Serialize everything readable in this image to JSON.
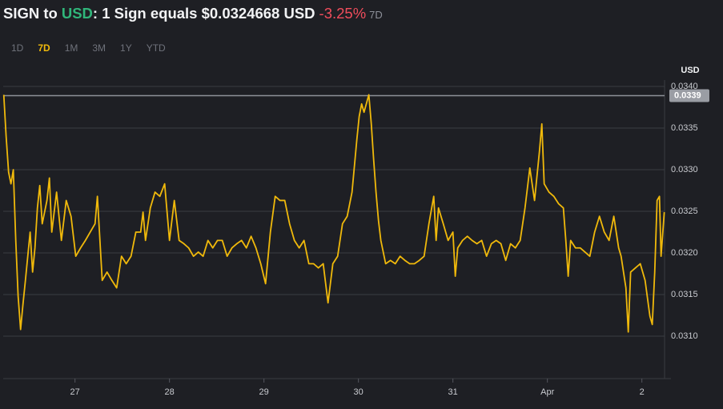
{
  "header": {
    "title_parts": [
      "SIGN to",
      "USD",
      ": 1 Sign equals $0.0324668 USD",
      "-3.25%",
      "7D"
    ]
  },
  "range_tabs": {
    "labels": [
      "1D",
      "7D",
      "1M",
      "3M",
      "1Y",
      "YTD"
    ],
    "active_index": 1
  },
  "chart_data": {
    "type": "line",
    "y_axis_label": "USD",
    "x": [
      26.246,
      26.271,
      26.297,
      26.322,
      26.347,
      26.373,
      26.398,
      26.424,
      26.449,
      26.475,
      26.5,
      26.525,
      26.551,
      26.576,
      26.602,
      26.627,
      26.653,
      26.703,
      26.729,
      26.754,
      26.805,
      26.856,
      26.907,
      26.958,
      27.008,
      27.059,
      27.11,
      27.161,
      27.212,
      27.237,
      27.288,
      27.339,
      27.39,
      27.441,
      27.492,
      27.542,
      27.593,
      27.644,
      27.695,
      27.72,
      27.746,
      27.797,
      27.847,
      27.898,
      27.949,
      28,
      28.051,
      28.102,
      28.153,
      28.203,
      28.254,
      28.305,
      28.356,
      28.407,
      28.458,
      28.508,
      28.559,
      28.61,
      28.661,
      28.712,
      28.763,
      28.814,
      28.864,
      28.915,
      28.966,
      29.017,
      29.068,
      29.119,
      29.169,
      29.22,
      29.271,
      29.322,
      29.373,
      29.424,
      29.475,
      29.525,
      29.576,
      29.627,
      29.678,
      29.729,
      29.78,
      29.831,
      29.881,
      29.932,
      29.983,
      30.008,
      30.034,
      30.059,
      30.11,
      30.136,
      30.161,
      30.186,
      30.212,
      30.237,
      30.288,
      30.339,
      30.39,
      30.441,
      30.492,
      30.542,
      30.593,
      30.644,
      30.695,
      30.746,
      30.797,
      30.822,
      30.847,
      30.898,
      30.949,
      31,
      31.025,
      31.051,
      31.102,
      31.153,
      31.203,
      31.254,
      31.305,
      31.356,
      31.407,
      31.458,
      31.508,
      31.559,
      31.61,
      31.661,
      31.712,
      31.763,
      31.814,
      31.864,
      31.915,
      31.941,
      31.966,
      32.017,
      32.068,
      32.119,
      32.169,
      32.195,
      32.22,
      32.246,
      32.297,
      32.347,
      32.398,
      32.449,
      32.5,
      32.551,
      32.602,
      32.653,
      32.703,
      32.754,
      32.78,
      32.831,
      32.856,
      32.881,
      32.932,
      32.983,
      33.034,
      33.085,
      33.11,
      33.136,
      33.161,
      33.186,
      33.203,
      33.237
    ],
    "series": [
      {
        "color": "#f0b90b",
        "values": [
          0.0339,
          0.0334,
          0.03297,
          0.03283,
          0.033,
          0.03215,
          0.03148,
          0.03108,
          0.03138,
          0.03167,
          0.03196,
          0.03225,
          0.03177,
          0.03206,
          0.03254,
          0.03281,
          0.03235,
          0.03263,
          0.0329,
          0.03225,
          0.03273,
          0.03215,
          0.03263,
          0.03244,
          0.03196,
          0.03206,
          0.03215,
          0.03225,
          0.03235,
          0.03268,
          0.03167,
          0.03177,
          0.03167,
          0.03158,
          0.03196,
          0.03187,
          0.03196,
          0.03225,
          0.03225,
          0.03249,
          0.03215,
          0.03254,
          0.03273,
          0.03268,
          0.03283,
          0.03215,
          0.03263,
          0.03215,
          0.03211,
          0.03206,
          0.03196,
          0.03201,
          0.03196,
          0.03215,
          0.03206,
          0.03215,
          0.03215,
          0.03196,
          0.03206,
          0.03211,
          0.03215,
          0.03206,
          0.0322,
          0.03206,
          0.03187,
          0.03163,
          0.03225,
          0.03268,
          0.03263,
          0.03263,
          0.03235,
          0.03215,
          0.03206,
          0.03215,
          0.03187,
          0.03187,
          0.03182,
          0.03187,
          0.0314,
          0.03187,
          0.03196,
          0.03235,
          0.03244,
          0.03273,
          0.03336,
          0.03364,
          0.03379,
          0.03369,
          0.0339,
          0.03355,
          0.03312,
          0.03273,
          0.03239,
          0.03215,
          0.03187,
          0.03191,
          0.03187,
          0.03196,
          0.03191,
          0.03187,
          0.03187,
          0.03191,
          0.03196,
          0.03235,
          0.03268,
          0.03215,
          0.03254,
          0.03235,
          0.03215,
          0.03225,
          0.03172,
          0.03206,
          0.03215,
          0.0322,
          0.03215,
          0.03211,
          0.03215,
          0.03196,
          0.03211,
          0.03215,
          0.03211,
          0.03191,
          0.03211,
          0.03206,
          0.03215,
          0.03254,
          0.03302,
          0.03263,
          0.03321,
          0.03355,
          0.03283,
          0.03273,
          0.03268,
          0.03259,
          0.03254,
          0.03215,
          0.03172,
          0.03215,
          0.03206,
          0.03206,
          0.03201,
          0.03196,
          0.03225,
          0.03244,
          0.03225,
          0.03215,
          0.03244,
          0.03206,
          0.03196,
          0.03158,
          0.03105,
          0.03177,
          0.03182,
          0.03187,
          0.03167,
          0.03124,
          0.03114,
          0.03177,
          0.03263,
          0.03268,
          0.03196,
          0.03249
        ]
      }
    ],
    "xlim": [
      26.24,
      33.24
    ],
    "xticks": [
      27,
      28,
      29,
      30,
      31,
      {
        "value": 32,
        "label": "Apr"
      },
      {
        "value": 33,
        "label": "2"
      }
    ],
    "ylim": [
      0.03049,
      0.034
    ],
    "yticks": [
      {
        "value": 0.031,
        "label": "0.0310"
      },
      {
        "value": 0.0315,
        "label": "0.0315"
      },
      {
        "value": 0.032,
        "label": "0.0320"
      },
      {
        "value": 0.0325,
        "label": "0.0325"
      },
      {
        "value": 0.033,
        "label": "0.0330"
      },
      {
        "value": 0.0335,
        "label": "0.0335"
      },
      {
        "value": 0.034,
        "label": "0.0340"
      }
    ],
    "grid": true,
    "price_line": {
      "value": 0.03389,
      "label": "0.0339"
    }
  }
}
